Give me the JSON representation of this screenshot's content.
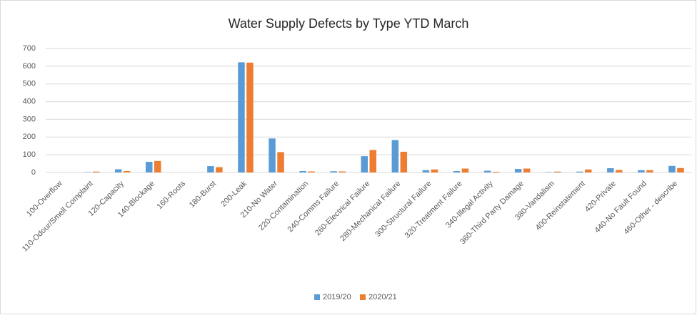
{
  "chart_data": {
    "type": "bar",
    "title": "Water Supply Defects by Type YTD March",
    "categories": [
      "100-Overflow",
      "110-Odour/Smell Complaint",
      "120-Capacity",
      "140-Blockage",
      "160-Roots",
      "180-Burst",
      "200-Leak",
      "210-No Water",
      "220-Contamination",
      "240-Comms Failure",
      "260-Electrical Failure",
      "280-Mechanical Failure",
      "300-Structural Failure",
      "320-Treatment Failure",
      "340-Illegal Activity",
      "360-Third Party Damage",
      "380-Vandalism",
      "400-Reinstatement",
      "420-Private",
      "440-No Fault Found",
      "460-Other - describe"
    ],
    "series": [
      {
        "name": "2019/20",
        "color": "#5b9bd5",
        "values": [
          0,
          2,
          18,
          60,
          0,
          36,
          622,
          192,
          8,
          7,
          92,
          183,
          13,
          8,
          10,
          20,
          2,
          5,
          24,
          13,
          37
        ]
      },
      {
        "name": "2020/21",
        "color": "#ed7d31",
        "values": [
          0,
          5,
          8,
          65,
          0,
          30,
          620,
          115,
          6,
          6,
          127,
          117,
          17,
          22,
          4,
          22,
          5,
          17,
          14,
          13,
          25
        ]
      }
    ],
    "ylim": [
      0,
      700
    ],
    "yticks": [
      0,
      100,
      200,
      300,
      400,
      500,
      600,
      700
    ],
    "grid": true,
    "legend": "bottom"
  }
}
